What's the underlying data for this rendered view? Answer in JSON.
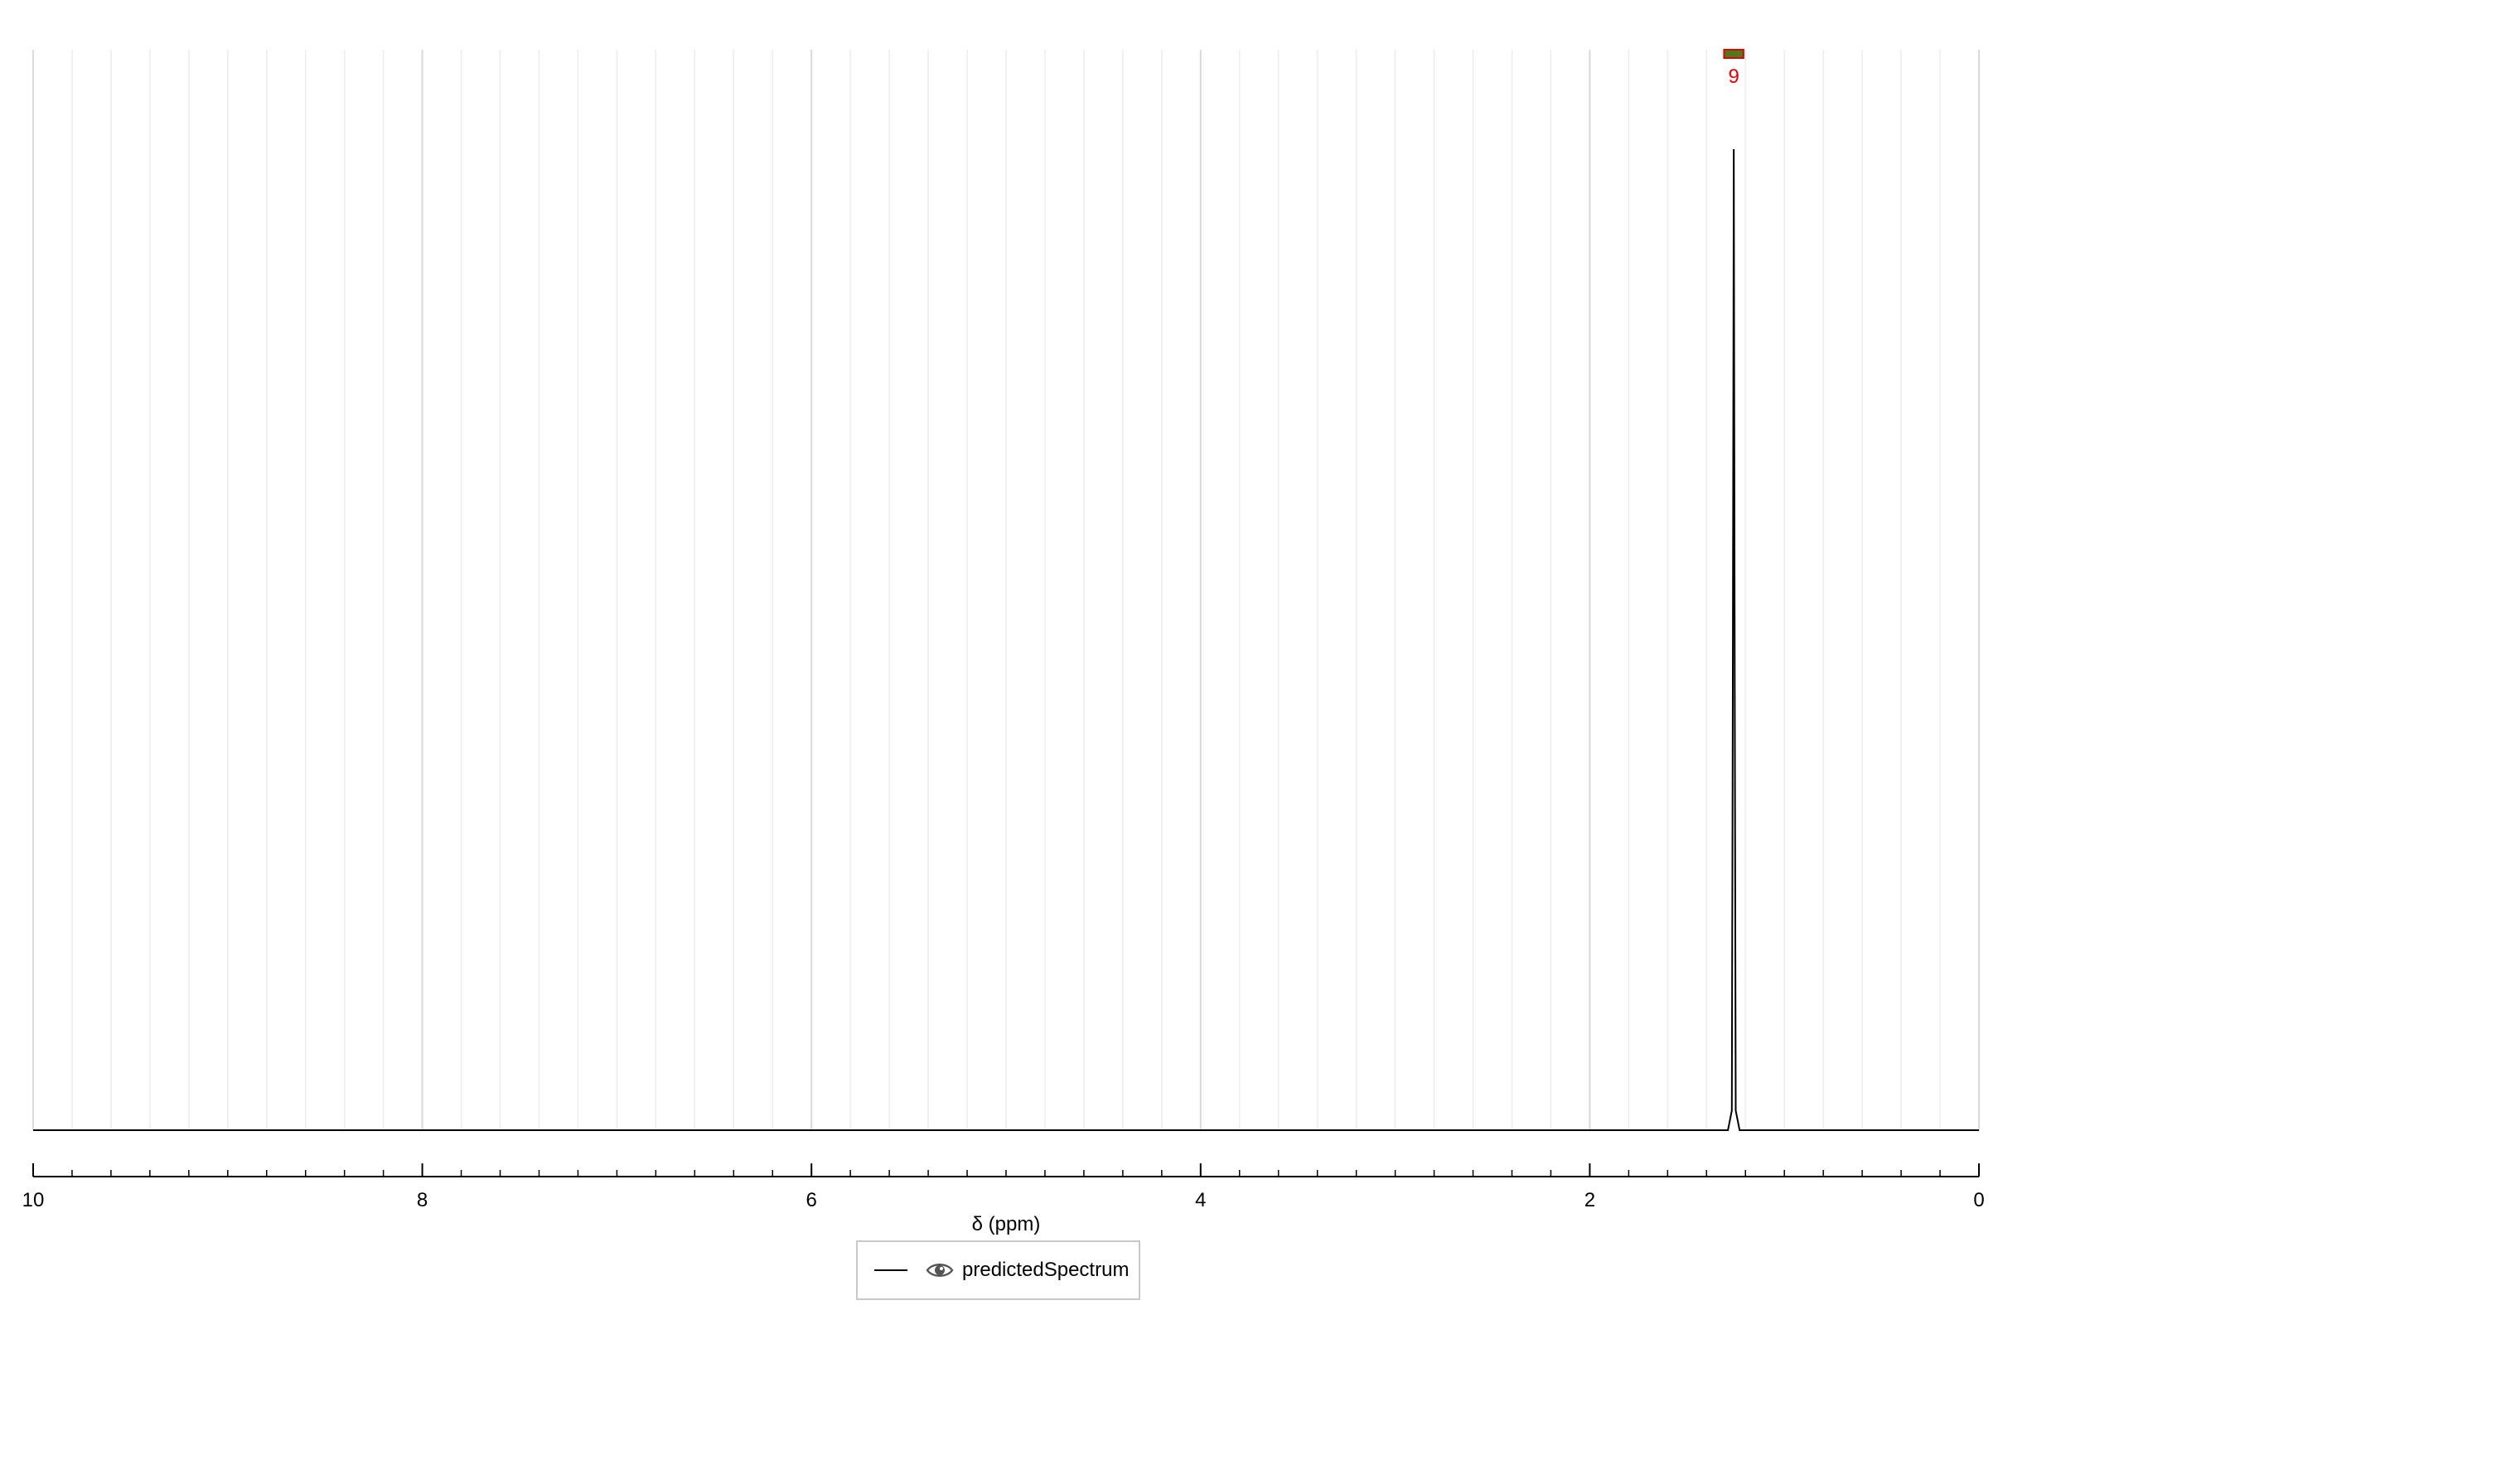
{
  "chart_data": {
    "type": "line",
    "xlabel": "δ (ppm)",
    "ylabel": "",
    "xlim": [
      10,
      0
    ],
    "x_reversed": true,
    "x_major_ticks": [
      "10",
      "8",
      "6",
      "4",
      "2",
      "0"
    ],
    "x_minor_step": 0.2,
    "grid": true,
    "legend_position": "below-center",
    "series": [
      {
        "name": "predictedSpectrum",
        "color": "#000000",
        "x": [
          10.0,
          1.29,
          1.27,
          1.265,
          1.26,
          1.255,
          1.25,
          1.23,
          0.0
        ],
        "y": [
          0,
          0,
          0.02,
          0.45,
          1.0,
          0.45,
          0.02,
          0,
          0
        ]
      }
    ],
    "integrals": [
      {
        "from": 1.31,
        "to": 1.21,
        "label": "9",
        "label_color": "#e60000",
        "bar_color": "#4e7a1c",
        "bar_edge_color": "#e60000"
      }
    ]
  },
  "legend": {
    "items": [
      {
        "label": "predictedSpectrum",
        "icon": "eye-icon",
        "line_color": "#000000"
      }
    ]
  }
}
